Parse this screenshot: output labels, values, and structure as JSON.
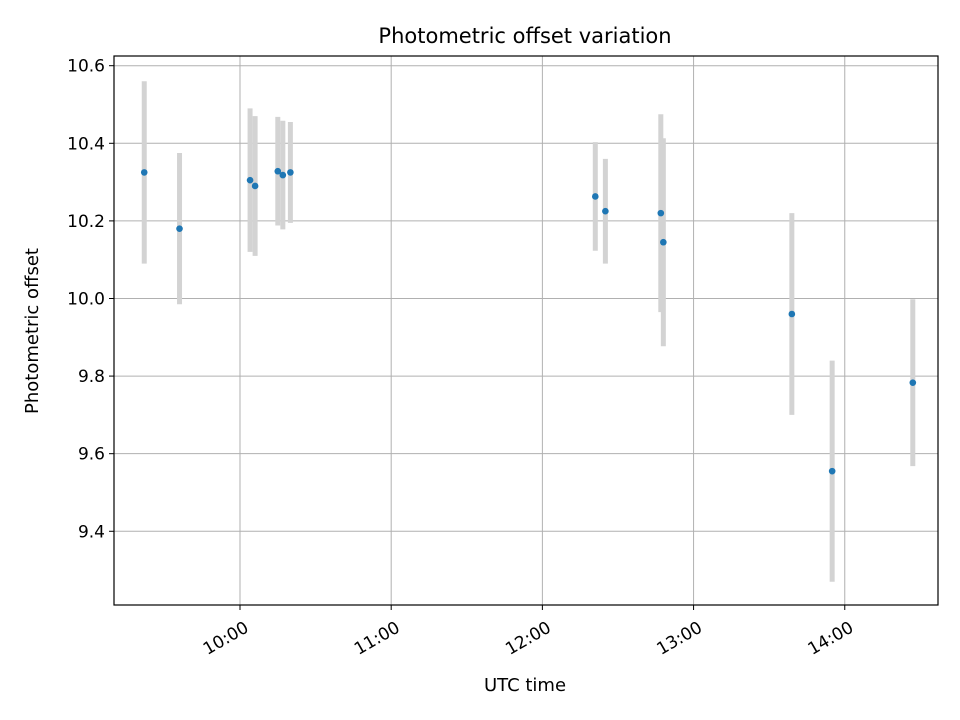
{
  "chart_data": {
    "type": "scatter",
    "title": "Photometric offset variation",
    "xlabel": "UTC time",
    "ylabel": "Photometric offset",
    "x_ticks": [
      "10:00",
      "11:00",
      "12:00",
      "13:00",
      "14:00"
    ],
    "y_ticks": [
      "9.4",
      "9.6",
      "9.8",
      "10.0",
      "10.2",
      "10.4",
      "10.6"
    ],
    "xlim": [
      "09:10",
      "14:37"
    ],
    "ylim": [
      9.21,
      10.625
    ],
    "grid": true,
    "series": [
      {
        "marker_color": "#1f77b4",
        "errorbar_color": "#d3d3d3",
        "points": [
          {
            "t": "09:22",
            "y": 10.325,
            "err": 0.235
          },
          {
            "t": "09:36",
            "y": 10.18,
            "err": 0.195
          },
          {
            "t": "10:04",
            "y": 10.305,
            "err": 0.185
          },
          {
            "t": "10:06",
            "y": 10.29,
            "err": 0.18
          },
          {
            "t": "10:15",
            "y": 10.328,
            "err": 0.14
          },
          {
            "t": "10:17",
            "y": 10.318,
            "err": 0.14
          },
          {
            "t": "10:20",
            "y": 10.325,
            "err": 0.13
          },
          {
            "t": "12:21",
            "y": 10.263,
            "err": 0.14
          },
          {
            "t": "12:25",
            "y": 10.225,
            "err": 0.135
          },
          {
            "t": "12:47",
            "y": 10.22,
            "err": 0.255
          },
          {
            "t": "12:48",
            "y": 10.145,
            "err": 0.268
          },
          {
            "t": "13:39",
            "y": 9.96,
            "err": 0.26
          },
          {
            "t": "13:55",
            "y": 9.555,
            "err": 0.285
          },
          {
            "t": "14:27",
            "y": 9.783,
            "err": 0.215
          }
        ]
      }
    ]
  }
}
